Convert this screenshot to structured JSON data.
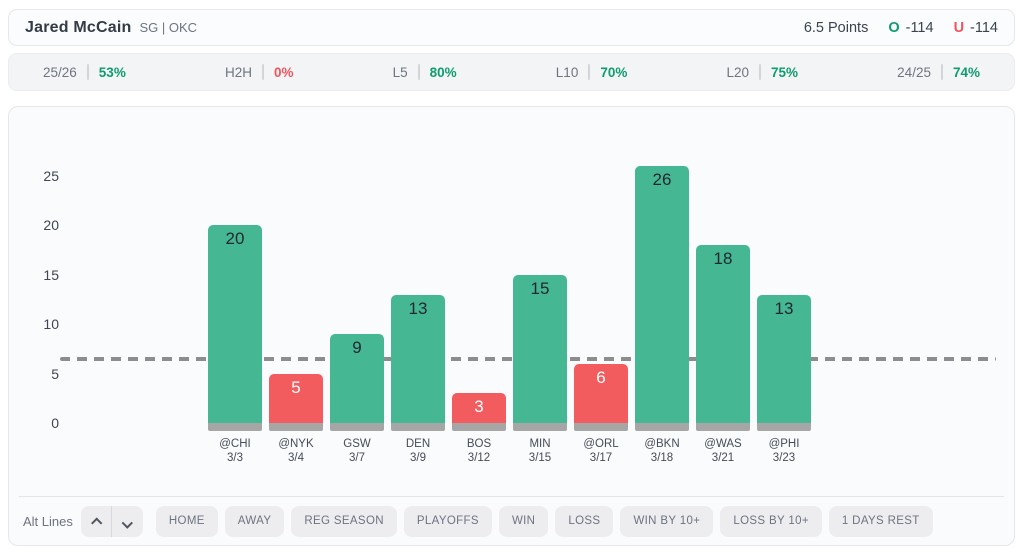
{
  "header": {
    "player_name": "Jared McCain",
    "player_meta": "SG | OKC",
    "prop_line": "6.5 Points",
    "over_label": "O",
    "over_odds": "-114",
    "under_label": "U",
    "under_odds": "-114"
  },
  "stats": [
    {
      "label": "25/26",
      "value": "53%",
      "status": "positive"
    },
    {
      "label": "H2H",
      "value": "0%",
      "status": "negative"
    },
    {
      "label": "L5",
      "value": "80%",
      "status": "positive"
    },
    {
      "label": "L10",
      "value": "70%",
      "status": "positive"
    },
    {
      "label": "L20",
      "value": "75%",
      "status": "positive"
    },
    {
      "label": "24/25",
      "value": "74%",
      "status": "positive"
    }
  ],
  "chart_data": {
    "type": "bar",
    "title": "",
    "xlabel": "",
    "ylabel": "",
    "categories": [
      "@CHI",
      "@NYK",
      "GSW",
      "DEN",
      "BOS",
      "MIN",
      "@ORL",
      "@BKN",
      "@WAS",
      "@PHI"
    ],
    "dates": [
      "3/3",
      "3/4",
      "3/7",
      "3/9",
      "3/12",
      "3/15",
      "3/17",
      "3/18",
      "3/21",
      "3/23"
    ],
    "values": [
      20,
      5,
      9,
      13,
      3,
      15,
      6,
      26,
      18,
      13
    ],
    "reference_line": 6.5,
    "yticks": [
      0,
      5,
      10,
      15,
      20,
      25
    ],
    "ylim": [
      0,
      27.5
    ],
    "grid": false,
    "legend": "none",
    "colors": {
      "over": "#45b893",
      "under": "#f25c5e",
      "base": "#a6a6a6",
      "line": "#8d8d8d",
      "label_on_over": "#212830",
      "label_on_under": "#ffffff"
    }
  },
  "controls": {
    "alt_lines_label": "Alt Lines",
    "filters": [
      "HOME",
      "AWAY",
      "REG SEASON",
      "PLAYOFFS",
      "WIN",
      "LOSS",
      "WIN BY 10+",
      "LOSS BY 10+",
      "1 DAYS REST"
    ]
  },
  "theme": {
    "positive": "#0e9d70",
    "negative": "#f0555c"
  }
}
